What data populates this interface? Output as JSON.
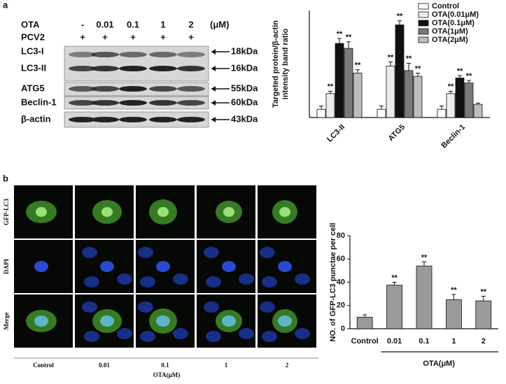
{
  "panel_a": {
    "label": "a",
    "treatment_label": "OTA",
    "doses": [
      "-",
      "0.01",
      "0.1",
      "1",
      "2"
    ],
    "unit": "(μM)",
    "virus_label": "PCV2",
    "virus": [
      "+",
      "+",
      "+",
      "+",
      "+"
    ],
    "bands": [
      {
        "name": "LC3-I",
        "size": "18kDa"
      },
      {
        "name": "LC3-II",
        "size": "16kDa"
      },
      {
        "name": "ATG5",
        "size": "55kDa"
      },
      {
        "name": "Beclin-1",
        "size": "60kDa"
      },
      {
        "name": "β-actin",
        "size": "43kDa"
      }
    ]
  },
  "panel_b": {
    "label": "b",
    "rows": [
      "GFP-LC3",
      "DAPI",
      "Merge"
    ],
    "columns": [
      "Control",
      "0.01",
      "0.1",
      "1",
      "2"
    ],
    "x_label": "OTA(μM)"
  },
  "chart_data": [
    {
      "type": "bar",
      "y_label": [
        "Targeted protein/β-actin",
        "intensity band ratio"
      ],
      "categories": [
        "LC3-II",
        "ATG5",
        "Beclin-1"
      ],
      "series": [
        {
          "name": "Control",
          "color": "#ffffff",
          "values": [
            1,
            1,
            1
          ],
          "errors": [
            0.4,
            0.4,
            0.4
          ],
          "labels": [
            null,
            null,
            null
          ]
        },
        {
          "name": "OTA(0.01μM)",
          "color": "#ececec",
          "values": [
            2.9,
            6.25,
            2.9
          ],
          "errors": [
            0.3,
            0.5,
            0.3
          ],
          "labels": [
            "**",
            "**",
            "**"
          ]
        },
        {
          "name": "OTA(0.1μM)",
          "color": "#111111",
          "values": [
            9,
            11.25,
            4.8
          ],
          "errors": [
            0.6,
            0.5,
            0.3
          ],
          "labels": [
            "**",
            "**",
            "**"
          ]
        },
        {
          "name": "OTA(1μM)",
          "color": "#7a7a7a",
          "values": [
            8.4,
            5.7,
            4.2
          ],
          "errors": [
            0.8,
            0.9,
            0.3
          ],
          "labels": [
            "**",
            "**",
            "**"
          ]
        },
        {
          "name": "OTA(2μM)",
          "color": "#bdbdbd",
          "values": [
            5.4,
            5,
            1.6
          ],
          "errors": [
            0.4,
            0.4,
            0.15
          ],
          "labels": [
            "**",
            "**",
            null
          ]
        }
      ],
      "ylim": [
        0,
        13
      ],
      "legend": "top-right"
    },
    {
      "type": "bar",
      "y_label": [
        "NO. of GFP-LC3 punctae per cell"
      ],
      "x_label": "OTA(μM)",
      "categories": [
        "Control",
        "0.01",
        "0.1",
        "1",
        "2"
      ],
      "series": [
        {
          "color": "#9a9a9a",
          "values": [
            10,
            37.5,
            54,
            25,
            24
          ],
          "errors": [
            2,
            2.5,
            3.5,
            4.5,
            4
          ],
          "labels": [
            null,
            "**",
            "**",
            "**",
            "**"
          ]
        }
      ],
      "ylim": [
        0,
        80
      ],
      "yticks": [
        0,
        20,
        40,
        60,
        80
      ]
    }
  ]
}
